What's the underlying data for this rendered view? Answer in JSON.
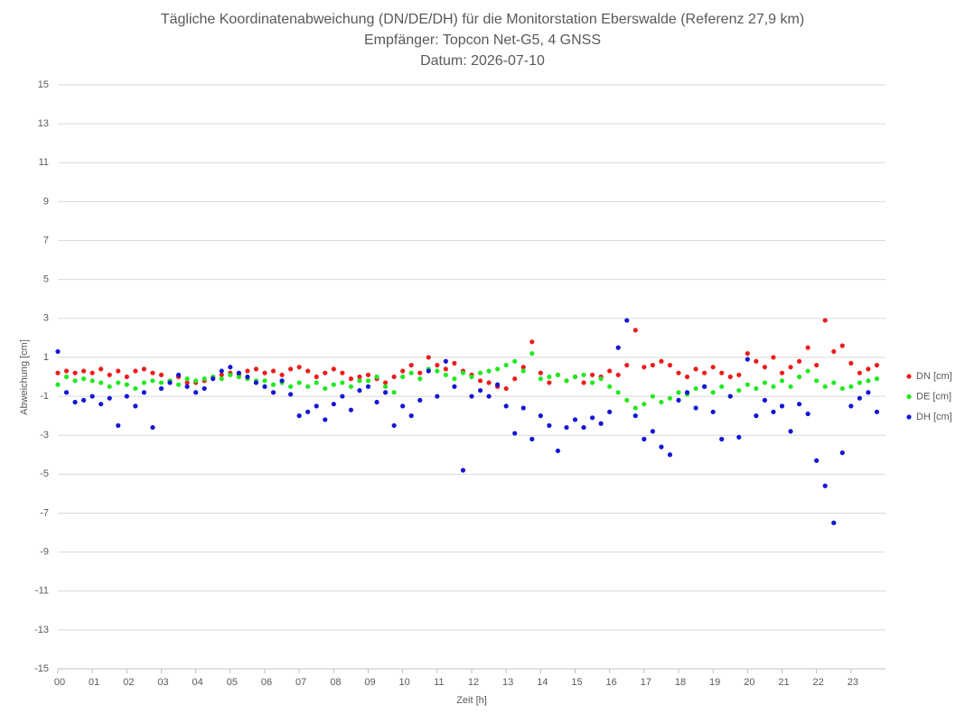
{
  "chart_data": {
    "type": "scatter",
    "title": "Tägliche Koordinatenabweichung (DN/DE/DH) für die Monitorstation Eberswalde (Referenz 27,9 km)",
    "subtitle": [
      "Empfänger: Topcon Net-G5, 4 GNSS",
      "Datum: 2026-07-10"
    ],
    "xlabel": "Zeit [h]",
    "ylabel": "Abweichung [cm]",
    "xlim": [
      0,
      24
    ],
    "ylim": [
      -15,
      15
    ],
    "xticks": [
      {
        "value": 0,
        "label": "00"
      },
      {
        "value": 1,
        "label": "01"
      },
      {
        "value": 2,
        "label": "02"
      },
      {
        "value": 3,
        "label": "03"
      },
      {
        "value": 4,
        "label": "04"
      },
      {
        "value": 5,
        "label": "05"
      },
      {
        "value": 6,
        "label": "06"
      },
      {
        "value": 7,
        "label": "07"
      },
      {
        "value": 8,
        "label": "08"
      },
      {
        "value": 9,
        "label": "09"
      },
      10,
      11,
      12,
      13,
      14,
      15,
      16,
      17,
      18,
      19,
      20,
      21,
      22,
      23
    ],
    "yticks": [
      -15,
      -13,
      -11,
      -9,
      -7,
      -5,
      -3,
      -1,
      1,
      3,
      5,
      7,
      9,
      11,
      13,
      15
    ],
    "grid": true,
    "legend": "right",
    "x": [
      0,
      0.25,
      0.5,
      0.75,
      1,
      1.25,
      1.5,
      1.75,
      2,
      2.25,
      2.5,
      2.75,
      3,
      3.25,
      3.5,
      3.75,
      4,
      4.25,
      4.5,
      4.75,
      5,
      5.25,
      5.5,
      5.75,
      6,
      6.25,
      6.5,
      6.75,
      7,
      7.25,
      7.5,
      7.75,
      8,
      8.25,
      8.5,
      8.75,
      9,
      9.25,
      9.5,
      9.75,
      10,
      10.25,
      10.5,
      10.75,
      11,
      11.25,
      11.5,
      11.75,
      12,
      12.25,
      12.5,
      12.75,
      13,
      13.25,
      13.5,
      13.75,
      14,
      14.25,
      14.5,
      14.75,
      15,
      15.25,
      15.5,
      15.75,
      16,
      16.25,
      16.5,
      16.75,
      17,
      17.25,
      17.5,
      17.75,
      18,
      18.25,
      18.5,
      18.75,
      19,
      19.25,
      19.5,
      19.75,
      20,
      20.25,
      20.5,
      20.75,
      21,
      21.25,
      21.5,
      21.75,
      22,
      22.25,
      22.5,
      22.75,
      23,
      23.25,
      23.5,
      23.75
    ],
    "series": [
      {
        "name": "DN [cm]",
        "color": "#ee1c1c",
        "values": [
          0.2,
          0.3,
          0.2,
          0.3,
          0.2,
          0.4,
          0.1,
          0.3,
          0.0,
          0.3,
          0.4,
          0.2,
          0.1,
          -0.2,
          0.0,
          -0.3,
          -0.3,
          -0.2,
          0.0,
          0.1,
          0.2,
          0.1,
          0.3,
          0.4,
          0.2,
          0.3,
          0.1,
          0.4,
          0.5,
          0.3,
          0.0,
          0.2,
          0.4,
          0.2,
          -0.1,
          0.0,
          0.1,
          -0.1,
          -0.3,
          0.0,
          0.3,
          0.6,
          0.2,
          1.0,
          0.6,
          0.4,
          0.7,
          0.3,
          0.1,
          -0.2,
          -0.3,
          -0.5,
          -0.6,
          -0.1,
          0.5,
          1.8,
          0.2,
          -0.3,
          0.1,
          -0.2,
          0.0,
          -0.3,
          0.1,
          0.0,
          0.3,
          0.1,
          0.6,
          2.4,
          0.5,
          0.6,
          0.8,
          0.6,
          0.2,
          0.0,
          0.4,
          0.2,
          0.5,
          0.2,
          0.0,
          0.1,
          1.2,
          0.8,
          0.5,
          1.0,
          0.2,
          0.5,
          0.8,
          1.5,
          0.6,
          2.9,
          1.3,
          1.6,
          0.7,
          0.2,
          0.4,
          0.6
        ]
      },
      {
        "name": "DE [cm]",
        "color": "#22e822",
        "values": [
          -0.4,
          0.0,
          -0.2,
          -0.1,
          -0.2,
          -0.3,
          -0.5,
          -0.3,
          -0.4,
          -0.6,
          -0.3,
          -0.2,
          -0.3,
          -0.2,
          -0.4,
          -0.1,
          -0.2,
          -0.1,
          0.0,
          -0.1,
          0.1,
          0.0,
          -0.1,
          -0.2,
          -0.2,
          -0.4,
          -0.3,
          -0.5,
          -0.3,
          -0.5,
          -0.3,
          -0.6,
          -0.4,
          -0.3,
          -0.5,
          -0.2,
          -0.2,
          0.0,
          -0.5,
          -0.8,
          0.0,
          0.2,
          -0.1,
          0.4,
          0.3,
          0.1,
          -0.1,
          0.2,
          0.0,
          0.2,
          0.3,
          0.4,
          0.6,
          0.8,
          0.3,
          1.2,
          -0.1,
          0.0,
          0.1,
          -0.2,
          0.0,
          0.1,
          -0.3,
          -0.1,
          -0.5,
          -0.8,
          -1.2,
          -1.6,
          -1.4,
          -1.0,
          -1.3,
          -1.1,
          -0.8,
          -0.9,
          -0.6,
          -0.5,
          -0.8,
          -0.5,
          -1.0,
          -0.7,
          -0.4,
          -0.6,
          -0.3,
          -0.5,
          -0.2,
          -0.5,
          0.0,
          0.3,
          -0.2,
          -0.5,
          -0.3,
          -0.6,
          -0.5,
          -0.3,
          -0.2,
          -0.1
        ]
      },
      {
        "name": "DH [cm]",
        "color": "#1515d6",
        "values": [
          1.3,
          -0.8,
          -1.3,
          -1.2,
          -1.0,
          -1.4,
          -1.1,
          -2.5,
          -1.0,
          -1.5,
          -0.8,
          -2.6,
          -0.6,
          -0.3,
          0.1,
          -0.5,
          -0.8,
          -0.6,
          -0.1,
          0.3,
          0.5,
          0.2,
          0.0,
          -0.3,
          -0.5,
          -0.8,
          -0.2,
          -0.9,
          -2.0,
          -1.8,
          -1.5,
          -2.2,
          -1.4,
          -1.0,
          -1.7,
          -0.7,
          -0.5,
          -1.3,
          -0.8,
          -2.5,
          -1.5,
          -2.0,
          -1.2,
          0.3,
          -1.0,
          0.8,
          -0.5,
          -4.8,
          -1.0,
          -0.7,
          -1.0,
          -0.4,
          -1.5,
          -2.9,
          -1.6,
          -3.2,
          -2.0,
          -2.5,
          -3.8,
          -2.6,
          -2.2,
          -2.6,
          -2.1,
          -2.4,
          -1.8,
          1.5,
          2.9,
          -2.0,
          -3.2,
          -2.8,
          -3.6,
          -4.0,
          -1.2,
          -0.8,
          -1.6,
          -0.5,
          -1.8,
          -3.2,
          -1.0,
          -3.1,
          0.9,
          -2.0,
          -1.2,
          -1.8,
          -1.5,
          -2.8,
          -1.4,
          -1.9,
          -4.3,
          -5.6,
          -7.5,
          -3.9,
          -1.5,
          -1.1,
          -0.8,
          -1.8
        ]
      }
    ]
  }
}
